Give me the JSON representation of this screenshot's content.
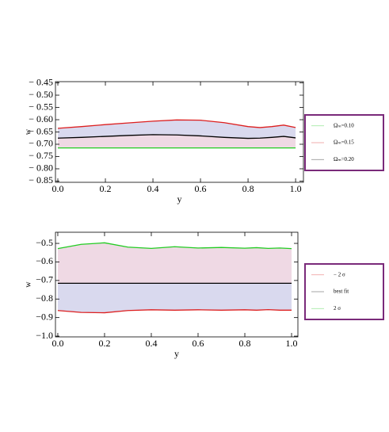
{
  "chart_data": [
    {
      "type": "line",
      "xlabel": "y",
      "ylabel": "w",
      "legend": "right",
      "xlim": [
        -0.01,
        1.033
      ],
      "ylim": [
        -0.855,
        -0.445
      ],
      "xticks": [
        {
          "value": 0,
          "label": "0.0"
        },
        {
          "value": 0.2,
          "label": "0.2"
        },
        {
          "value": 0.4,
          "label": "0.4"
        },
        {
          "value": 0.6,
          "label": "0.6"
        },
        {
          "value": 0.8,
          "label": "0.8"
        },
        {
          "value": 1,
          "label": "1.0"
        }
      ],
      "yticks": [
        {
          "value": -0.45,
          "label": "− 0.45"
        },
        {
          "value": -0.5,
          "label": "− 0.50"
        },
        {
          "value": -0.55,
          "label": "− 0.55"
        },
        {
          "value": -0.6,
          "label": "− 0.60"
        },
        {
          "value": -0.65,
          "label": "− 0.65"
        },
        {
          "value": -0.7,
          "label": "− 0.70"
        },
        {
          "value": -0.75,
          "label": "− 0.75"
        },
        {
          "value": -0.8,
          "label": "− 0.80"
        },
        {
          "value": -0.85,
          "label": "− 0.85"
        }
      ],
      "x": [
        0,
        0.1,
        0.2,
        0.3,
        0.4,
        0.5,
        0.6,
        0.7,
        0.8,
        0.85,
        0.9,
        0.95,
        1.0
      ],
      "series": [
        {
          "name": "Ωₘ=0.10",
          "color": "#22cc22",
          "values": [
            -0.715,
            -0.715,
            -0.715,
            -0.715,
            -0.715,
            -0.715,
            -0.715,
            -0.715,
            -0.715,
            -0.715,
            -0.715,
            -0.715,
            -0.715
          ]
        },
        {
          "name": "Ωₘ=0.15",
          "color": "#dd1f1f",
          "values": [
            -0.635,
            -0.628,
            -0.62,
            -0.613,
            -0.606,
            -0.601,
            -0.602,
            -0.612,
            -0.628,
            -0.632,
            -0.628,
            -0.622,
            -0.632
          ]
        },
        {
          "name": "Ωₘ=0.20",
          "color": "#000000",
          "values": [
            -0.675,
            -0.672,
            -0.668,
            -0.664,
            -0.661,
            -0.662,
            -0.666,
            -0.672,
            -0.676,
            -0.675,
            -0.672,
            -0.668,
            -0.674
          ]
        }
      ],
      "bands": [
        {
          "between": [
            1,
            2
          ],
          "color": "#d9d9ee"
        },
        {
          "between": [
            2,
            0
          ],
          "color": "#efd9e4"
        }
      ]
    },
    {
      "type": "line",
      "xlabel": "y",
      "ylabel": "w",
      "legend": "right",
      "xlim": [
        -0.01,
        1.027
      ],
      "ylim": [
        -1.004,
        -0.44
      ],
      "xticks": [
        {
          "value": 0,
          "label": "0.0"
        },
        {
          "value": 0.2,
          "label": "0.2"
        },
        {
          "value": 0.4,
          "label": "0.4"
        },
        {
          "value": 0.6,
          "label": "0.6"
        },
        {
          "value": 0.8,
          "label": "0.8"
        },
        {
          "value": 1,
          "label": "1.0"
        }
      ],
      "yticks": [
        {
          "value": -0.5,
          "label": "−0.5"
        },
        {
          "value": -0.6,
          "label": "−0.6"
        },
        {
          "value": -0.7,
          "label": "−0.7"
        },
        {
          "value": -0.8,
          "label": "−0.8"
        },
        {
          "value": -0.9,
          "label": "−0.9"
        },
        {
          "value": -1.0,
          "label": "−1.0"
        }
      ],
      "x": [
        0,
        0.1,
        0.2,
        0.3,
        0.4,
        0.5,
        0.6,
        0.7,
        0.8,
        0.85,
        0.9,
        0.95,
        1.0
      ],
      "series": [
        {
          "name": "− 2 σ",
          "color": "#dd1f1f",
          "values": [
            -0.862,
            -0.872,
            -0.874,
            -0.862,
            -0.858,
            -0.86,
            -0.858,
            -0.86,
            -0.858,
            -0.86,
            -0.857,
            -0.86,
            -0.86
          ]
        },
        {
          "name": "best fit",
          "color": "#000000",
          "values": [
            -0.715,
            -0.715,
            -0.715,
            -0.715,
            -0.715,
            -0.715,
            -0.715,
            -0.715,
            -0.715,
            -0.715,
            -0.715,
            -0.715,
            -0.715
          ]
        },
        {
          "name": "2 σ",
          "color": "#22cc22",
          "values": [
            -0.528,
            -0.505,
            -0.497,
            -0.52,
            -0.527,
            -0.518,
            -0.525,
            -0.522,
            -0.526,
            -0.523,
            -0.527,
            -0.525,
            -0.528
          ]
        }
      ],
      "bands": [
        {
          "between": [
            2,
            1
          ],
          "color": "#efd9e4"
        },
        {
          "between": [
            1,
            0
          ],
          "color": "#d9d9ee"
        }
      ]
    }
  ]
}
